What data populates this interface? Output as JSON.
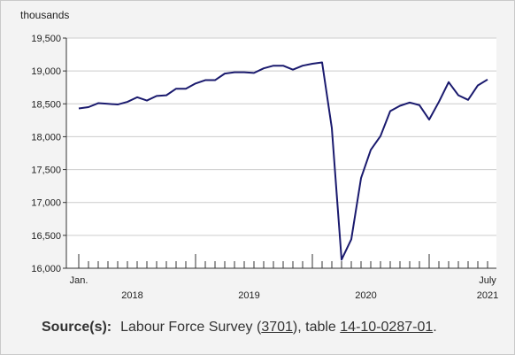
{
  "chart_data": {
    "type": "line",
    "ylabel": "thousands",
    "ylim": [
      16000,
      19500
    ],
    "yticks": [
      16000,
      16500,
      17000,
      17500,
      18000,
      18500,
      19000,
      19500
    ],
    "ytick_labels": [
      "16,000",
      "16,500",
      "17,000",
      "17,500",
      "18,000",
      "18,500",
      "19,000",
      "19,500"
    ],
    "x_first_label": "Jan.",
    "x_last_label_line1": "July",
    "x_last_label_line2": "2021",
    "year_labels": [
      "2018",
      "2019",
      "2020"
    ],
    "line_color": "#1a1a6e",
    "series": [
      {
        "values": [
          18430,
          18450,
          18510,
          18500,
          18490,
          18530,
          18600,
          18550,
          18620,
          18630,
          18730,
          18730,
          18810,
          18860,
          18860,
          18960,
          18980,
          18980,
          18970,
          19040,
          19080,
          19080,
          19020,
          19080,
          19110,
          19130,
          18130,
          16130,
          16440,
          17370,
          17800,
          18010,
          18390,
          18470,
          18520,
          18480,
          18260,
          18530,
          18830,
          18630,
          18560,
          18780,
          18870
        ]
      }
    ]
  },
  "source": {
    "label": "Source(s):",
    "text1": "Labour Force Survey (",
    "link1": "3701",
    "text2": "), table ",
    "link2": "14-10-0287-01",
    "text3": "."
  }
}
